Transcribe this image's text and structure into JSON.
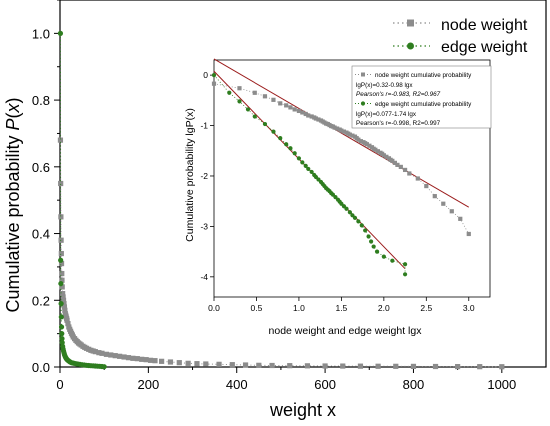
{
  "chart_data": [
    {
      "type": "scatter",
      "xlabel": "weight x",
      "ylabel_prefix": "Cumulative probability ",
      "ylabel_fn": "P",
      "ylabel_var": "x",
      "xlim": [
        0,
        1100
      ],
      "ylim": [
        0,
        1.1
      ],
      "xticks": [
        0,
        200,
        400,
        600,
        800,
        1000
      ],
      "yticks": [
        0.0,
        0.2,
        0.4,
        0.6,
        0.8,
        1.0
      ],
      "ytick_labels": [
        "0.0",
        "0.2",
        "0.4",
        "0.6",
        "0.8",
        "1.0"
      ],
      "legend_position": "top-right",
      "series": [
        {
          "name": "node weight",
          "color": "#8c8c8c",
          "marker": "square",
          "points": [
            [
              1,
              0.68
            ],
            [
              1.5,
              0.55
            ],
            [
              2,
              0.45
            ],
            [
              2.5,
              0.38
            ],
            [
              3,
              0.34
            ],
            [
              3.5,
              0.31
            ],
            [
              4,
              0.28
            ],
            [
              4.5,
              0.26
            ],
            [
              5,
              0.24
            ],
            [
              6,
              0.22
            ],
            [
              7,
              0.21
            ],
            [
              8,
              0.2
            ],
            [
              9,
              0.19
            ],
            [
              10,
              0.18
            ],
            [
              11,
              0.17
            ],
            [
              12,
              0.16
            ],
            [
              13,
              0.155
            ],
            [
              14,
              0.15
            ],
            [
              15,
              0.145
            ],
            [
              16,
              0.14
            ],
            [
              18,
              0.13
            ],
            [
              20,
              0.12
            ],
            [
              22,
              0.113
            ],
            [
              24,
              0.107
            ],
            [
              26,
              0.101
            ],
            [
              28,
              0.096
            ],
            [
              30,
              0.09
            ],
            [
              33,
              0.085
            ],
            [
              36,
              0.08
            ],
            [
              39,
              0.076
            ],
            [
              42,
              0.072
            ],
            [
              45,
              0.069
            ],
            [
              48,
              0.066
            ],
            [
              52,
              0.062
            ],
            [
              56,
              0.059
            ],
            [
              60,
              0.056
            ],
            [
              65,
              0.053
            ],
            [
              70,
              0.05
            ],
            [
              75,
              0.048
            ],
            [
              80,
              0.046
            ],
            [
              88,
              0.043
            ],
            [
              95,
              0.041
            ],
            [
              105,
              0.038
            ],
            [
              115,
              0.036
            ],
            [
              125,
              0.034
            ],
            [
              135,
              0.032
            ],
            [
              145,
              0.03
            ],
            [
              155,
              0.028
            ],
            [
              165,
              0.026
            ],
            [
              175,
              0.025
            ],
            [
              185,
              0.023
            ],
            [
              195,
              0.022
            ],
            [
              205,
              0.02
            ],
            [
              215,
              0.019
            ],
            [
              230,
              0.017
            ],
            [
              250,
              0.015
            ],
            [
              270,
              0.013
            ],
            [
              290,
              0.011
            ],
            [
              310,
              0.01
            ],
            [
              330,
              0.009
            ],
            [
              360,
              0.008
            ],
            [
              390,
              0.007
            ],
            [
              420,
              0.006
            ],
            [
              450,
              0.005
            ],
            [
              480,
              0.0045
            ],
            [
              520,
              0.004
            ],
            [
              560,
              0.0035
            ],
            [
              600,
              0.003
            ],
            [
              640,
              0.0028
            ],
            [
              680,
              0.0025
            ],
            [
              720,
              0.0022
            ],
            [
              760,
              0.002
            ],
            [
              800,
              0.0018
            ],
            [
              850,
              0.0015
            ],
            [
              900,
              0.0012
            ],
            [
              950,
              0.001
            ],
            [
              1000,
              0.0008
            ]
          ]
        },
        {
          "name": "edge weight",
          "color": "#2e7d1f",
          "marker": "circle",
          "points": [
            [
              1,
              1.0
            ],
            [
              1.5,
              0.32
            ],
            [
              2,
              0.25
            ],
            [
              2.5,
              0.19
            ],
            [
              3,
              0.15
            ],
            [
              3.5,
              0.12
            ],
            [
              4,
              0.1
            ],
            [
              4.5,
              0.085
            ],
            [
              5,
              0.073
            ],
            [
              6,
              0.062
            ],
            [
              7,
              0.054
            ],
            [
              8,
              0.048
            ],
            [
              9,
              0.043
            ],
            [
              10,
              0.038
            ],
            [
              11,
              0.034
            ],
            [
              12,
              0.031
            ],
            [
              13,
              0.028
            ],
            [
              14,
              0.026
            ],
            [
              15,
              0.024
            ],
            [
              17,
              0.021
            ],
            [
              19,
              0.019
            ],
            [
              21,
              0.017
            ],
            [
              23,
              0.015
            ],
            [
              26,
              0.013
            ],
            [
              29,
              0.012
            ],
            [
              32,
              0.011
            ],
            [
              36,
              0.01
            ],
            [
              40,
              0.009
            ],
            [
              45,
              0.008
            ],
            [
              50,
              0.007
            ],
            [
              55,
              0.006
            ],
            [
              60,
              0.005
            ],
            [
              65,
              0.0045
            ],
            [
              70,
              0.004
            ],
            [
              75,
              0.0035
            ],
            [
              80,
              0.003
            ],
            [
              85,
              0.0025
            ],
            [
              90,
              0.002
            ],
            [
              95,
              0.0015
            ],
            [
              100,
              0.001
            ]
          ]
        }
      ]
    },
    {
      "type": "scatter",
      "xlabel": "node weight and edge weight lgx",
      "ylabel": "Cumulative probability lgP(x)",
      "xlim": [
        0,
        3.25
      ],
      "ylim": [
        -4.4,
        0.3
      ],
      "xticks": [
        0.0,
        0.5,
        1.0,
        1.5,
        2.0,
        2.5,
        3.0
      ],
      "xtick_labels": [
        "0.0",
        "0.5",
        "1.0",
        "1.5",
        "2.0",
        "2.5",
        "3.0"
      ],
      "yticks": [
        0,
        -1,
        -2,
        -3,
        -4
      ],
      "yticks_labels": [
        "0",
        "-1",
        "-2",
        "-3",
        "-4"
      ],
      "legend_position": "top-right",
      "legend_lines": [
        "node weight cumulative probability",
        "lgP(x)=0.32-0.98 lgx",
        "Pearson's r=-0.983, R2=0.967",
        "edge weight cumulative probability",
        "lgP(x)=0.077-1.74 lgx",
        "Pearson's r=-0.998, R2=0.997"
      ],
      "series": [
        {
          "name": "node weight cumulative probability",
          "color": "#8c8c8c",
          "marker": "square",
          "fit": {
            "intercept": 0.32,
            "slope": -0.98,
            "x_range": [
              0,
              3.0
            ]
          },
          "points": [
            [
              0.0,
              -0.17
            ],
            [
              0.3,
              -0.26
            ],
            [
              0.48,
              -0.35
            ],
            [
              0.6,
              -0.42
            ],
            [
              0.7,
              -0.49
            ],
            [
              0.78,
              -0.56
            ],
            [
              0.85,
              -0.6
            ],
            [
              0.9,
              -0.64
            ],
            [
              0.95,
              -0.68
            ],
            [
              1.0,
              -0.71
            ],
            [
              1.04,
              -0.74
            ],
            [
              1.08,
              -0.77
            ],
            [
              1.11,
              -0.8
            ],
            [
              1.15,
              -0.82
            ],
            [
              1.18,
              -0.84
            ],
            [
              1.2,
              -0.86
            ],
            [
              1.23,
              -0.88
            ],
            [
              1.26,
              -0.9
            ],
            [
              1.28,
              -0.92
            ],
            [
              1.3,
              -0.94
            ],
            [
              1.32,
              -0.96
            ],
            [
              1.34,
              -0.97
            ],
            [
              1.36,
              -0.99
            ],
            [
              1.38,
              -1.01
            ],
            [
              1.4,
              -1.02
            ],
            [
              1.42,
              -1.04
            ],
            [
              1.45,
              -1.06
            ],
            [
              1.48,
              -1.08
            ],
            [
              1.5,
              -1.1
            ],
            [
              1.53,
              -1.12
            ],
            [
              1.56,
              -1.14
            ],
            [
              1.58,
              -1.16
            ],
            [
              1.6,
              -1.18
            ],
            [
              1.63,
              -1.2
            ],
            [
              1.66,
              -1.22
            ],
            [
              1.68,
              -1.25
            ],
            [
              1.7,
              -1.28
            ],
            [
              1.73,
              -1.31
            ],
            [
              1.76,
              -1.33
            ],
            [
              1.78,
              -1.35
            ],
            [
              1.8,
              -1.37
            ],
            [
              1.83,
              -1.4
            ],
            [
              1.86,
              -1.43
            ],
            [
              1.88,
              -1.46
            ],
            [
              1.9,
              -1.48
            ],
            [
              1.93,
              -1.51
            ],
            [
              1.96,
              -1.54
            ],
            [
              1.98,
              -1.56
            ],
            [
              2.0,
              -1.59
            ],
            [
              2.03,
              -1.62
            ],
            [
              2.06,
              -1.65
            ],
            [
              2.08,
              -1.68
            ],
            [
              2.1,
              -1.7
            ],
            [
              2.13,
              -1.74
            ],
            [
              2.16,
              -1.78
            ],
            [
              2.2,
              -1.82
            ],
            [
              2.25,
              -1.88
            ],
            [
              2.3,
              -1.95
            ],
            [
              2.4,
              -2.05
            ],
            [
              2.5,
              -2.2
            ],
            [
              2.6,
              -2.4
            ],
            [
              2.7,
              -2.55
            ],
            [
              2.8,
              -2.7
            ],
            [
              2.9,
              -2.85
            ],
            [
              3.0,
              -3.15
            ]
          ]
        },
        {
          "name": "edge weight cumulative probability",
          "color": "#2e7d1f",
          "marker": "circle",
          "fit": {
            "intercept": 0.077,
            "slope": -1.74,
            "x_range": [
              0,
              2.25
            ]
          },
          "points": [
            [
              0.0,
              0.0
            ],
            [
              0.18,
              -0.35
            ],
            [
              0.3,
              -0.52
            ],
            [
              0.4,
              -0.68
            ],
            [
              0.48,
              -0.82
            ],
            [
              0.6,
              -0.97
            ],
            [
              0.7,
              -1.12
            ],
            [
              0.78,
              -1.25
            ],
            [
              0.85,
              -1.37
            ],
            [
              0.9,
              -1.45
            ],
            [
              0.95,
              -1.55
            ],
            [
              1.0,
              -1.65
            ],
            [
              1.04,
              -1.73
            ],
            [
              1.08,
              -1.8
            ],
            [
              1.11,
              -1.86
            ],
            [
              1.15,
              -1.92
            ],
            [
              1.18,
              -1.98
            ],
            [
              1.2,
              -2.02
            ],
            [
              1.23,
              -2.07
            ],
            [
              1.26,
              -2.12
            ],
            [
              1.28,
              -2.16
            ],
            [
              1.3,
              -2.2
            ],
            [
              1.32,
              -2.24
            ],
            [
              1.34,
              -2.27
            ],
            [
              1.36,
              -2.3
            ],
            [
              1.38,
              -2.34
            ],
            [
              1.4,
              -2.37
            ],
            [
              1.43,
              -2.42
            ],
            [
              1.46,
              -2.47
            ],
            [
              1.48,
              -2.51
            ],
            [
              1.5,
              -2.55
            ],
            [
              1.53,
              -2.6
            ],
            [
              1.56,
              -2.65
            ],
            [
              1.6,
              -2.72
            ],
            [
              1.63,
              -2.78
            ],
            [
              1.66,
              -2.83
            ],
            [
              1.7,
              -2.9
            ],
            [
              1.74,
              -2.98
            ],
            [
              1.78,
              -3.08
            ],
            [
              1.82,
              -3.2
            ],
            [
              1.85,
              -3.3
            ],
            [
              1.88,
              -3.4
            ],
            [
              1.92,
              -3.5
            ],
            [
              2.0,
              -3.6
            ],
            [
              2.1,
              -3.68
            ],
            [
              2.25,
              -3.75
            ],
            [
              2.25,
              -3.95
            ]
          ]
        }
      ]
    }
  ]
}
